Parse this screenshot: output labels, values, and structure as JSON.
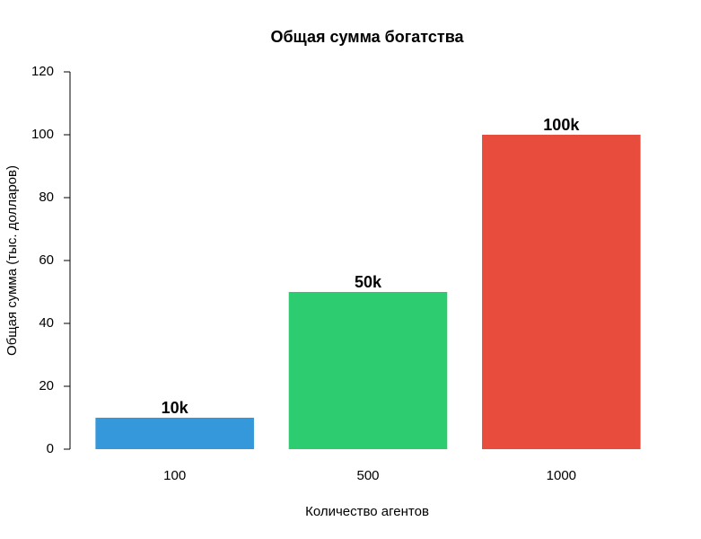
{
  "chart_data": {
    "type": "bar",
    "title": "Общая сумма богатства",
    "x_label": "Количество агентов",
    "y_label": "Общая сумма (тыс. долларов)",
    "categories": [
      "100",
      "500",
      "1000"
    ],
    "values": [
      10,
      50,
      100
    ],
    "value_labels": [
      "10k",
      "50k",
      "100k"
    ],
    "colors": [
      "#3498db",
      "#2ecc71",
      "#e74c3c"
    ],
    "ylim": [
      0,
      120
    ],
    "yticks": [
      0,
      20,
      40,
      60,
      80,
      100,
      120
    ],
    "grid": false
  }
}
